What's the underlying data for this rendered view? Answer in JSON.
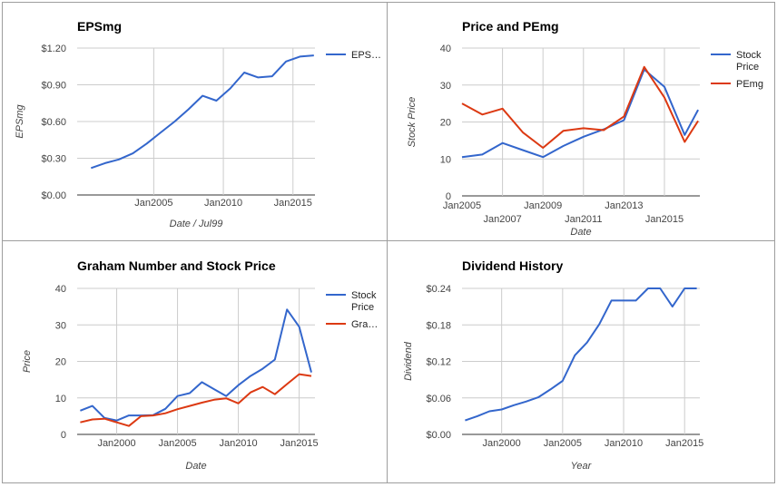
{
  "chart_data": [
    {
      "type": "line",
      "title": "EPSmg",
      "xlabel": "Date / Jul99",
      "ylabel": "EPSmg",
      "x_ticks": [
        "Jan2005",
        "Jan2010",
        "Jan2015"
      ],
      "y_ticks": [
        "$0.00",
        "$0.30",
        "$0.60",
        "$0.90",
        "$1.20"
      ],
      "ylim": [
        0,
        1.2
      ],
      "legend_position": "right",
      "series": [
        {
          "name": "EPS…",
          "color": "#3366cc",
          "x": [
            "2000-07",
            "2001-07",
            "2002-07",
            "2003-07",
            "2004-07",
            "2005-07",
            "2006-07",
            "2007-07",
            "2008-07",
            "2009-07",
            "2010-07",
            "2011-07",
            "2012-07",
            "2013-07",
            "2014-07",
            "2015-07",
            "2016-07"
          ],
          "values": [
            0.22,
            0.26,
            0.29,
            0.34,
            0.42,
            0.51,
            0.6,
            0.7,
            0.81,
            0.77,
            0.87,
            1.0,
            0.96,
            0.97,
            1.09,
            1.13,
            1.14
          ]
        }
      ]
    },
    {
      "type": "line",
      "title": "Price and PEmg",
      "xlabel": "Date",
      "ylabel": "Stock Price",
      "x_ticks_upper": [
        "Jan2005",
        "Jan2009",
        "Jan2013"
      ],
      "x_ticks_lower": [
        "Jan2007",
        "Jan2011",
        "Jan2015"
      ],
      "y_ticks": [
        "0",
        "10",
        "20",
        "30",
        "40"
      ],
      "ylim": [
        0,
        40
      ],
      "legend_position": "right",
      "series": [
        {
          "name": "Stock Price",
          "color": "#3366cc",
          "x": [
            "2005-01",
            "2006-01",
            "2007-01",
            "2008-01",
            "2009-01",
            "2010-01",
            "2011-01",
            "2012-01",
            "2013-01",
            "2014-01",
            "2015-01",
            "2016-01",
            "2016-09"
          ],
          "values": [
            10.5,
            11.2,
            14.3,
            12.4,
            10.5,
            13.5,
            16.0,
            18.0,
            20.5,
            34.2,
            29.5,
            16.5,
            23.3
          ]
        },
        {
          "name": "PEmg",
          "color": "#dc3912",
          "x": [
            "2005-01",
            "2006-01",
            "2007-01",
            "2008-01",
            "2009-01",
            "2010-01",
            "2011-01",
            "2012-01",
            "2013-01",
            "2014-01",
            "2015-01",
            "2016-01",
            "2016-09"
          ],
          "values": [
            25.0,
            22.0,
            23.6,
            17.2,
            13.0,
            17.6,
            18.3,
            17.8,
            21.5,
            34.9,
            26.6,
            14.6,
            20.3
          ]
        }
      ]
    },
    {
      "type": "line",
      "title": "Graham Number and Stock Price",
      "xlabel": "Date",
      "ylabel": "Price",
      "x_ticks": [
        "Jan2000",
        "Jan2005",
        "Jan2010",
        "Jan2015"
      ],
      "y_ticks": [
        "0",
        "10",
        "20",
        "30",
        "40"
      ],
      "ylim": [
        0,
        40
      ],
      "legend_position": "right",
      "series": [
        {
          "name": "Stock Price",
          "color": "#3366cc",
          "x": [
            "1997-01",
            "1998-01",
            "1999-01",
            "2000-01",
            "2001-01",
            "2002-01",
            "2003-01",
            "2004-01",
            "2005-01",
            "2006-01",
            "2007-01",
            "2008-01",
            "2009-01",
            "2010-01",
            "2011-01",
            "2012-01",
            "2013-01",
            "2014-01",
            "2015-01",
            "2016-01"
          ],
          "values": [
            6.5,
            7.8,
            4.5,
            3.8,
            5.2,
            5.2,
            5.3,
            7.0,
            10.5,
            11.3,
            14.3,
            12.4,
            10.5,
            13.5,
            16.0,
            18.0,
            20.5,
            34.2,
            29.5,
            17.0
          ]
        },
        {
          "name": "Gra…",
          "color": "#dc3912",
          "x": [
            "1997-01",
            "1998-01",
            "1999-01",
            "2000-01",
            "2001-01",
            "2002-01",
            "2003-01",
            "2004-01",
            "2005-01",
            "2006-01",
            "2007-01",
            "2008-01",
            "2009-01",
            "2010-01",
            "2011-01",
            "2012-01",
            "2013-01",
            "2014-01",
            "2015-01",
            "2016-01"
          ],
          "values": [
            3.3,
            4.1,
            4.3,
            3.3,
            2.3,
            5.0,
            5.2,
            5.8,
            6.9,
            7.8,
            8.7,
            9.5,
            9.9,
            8.5,
            11.5,
            13.0,
            11.0,
            13.8,
            16.5,
            16.0
          ]
        }
      ]
    },
    {
      "type": "line",
      "title": "Dividend History",
      "xlabel": "Year",
      "ylabel": "Dividend",
      "x_ticks": [
        "Jan2000",
        "Jan2005",
        "Jan2010",
        "Jan2015"
      ],
      "y_ticks": [
        "$0.00",
        "$0.06",
        "$0.12",
        "$0.18",
        "$0.24"
      ],
      "ylim": [
        0,
        0.24
      ],
      "series": [
        {
          "name": "",
          "color": "#3366cc",
          "x": [
            "1997-01",
            "1998-01",
            "1999-01",
            "2000-01",
            "2001-01",
            "2002-01",
            "2003-01",
            "2004-01",
            "2005-01",
            "2006-01",
            "2007-01",
            "2008-01",
            "2009-01",
            "2010-01",
            "2011-01",
            "2012-01",
            "2013-01",
            "2014-01",
            "2015-01",
            "2016-01"
          ],
          "values": [
            0.023,
            0.03,
            0.038,
            0.041,
            0.048,
            0.054,
            0.061,
            0.074,
            0.088,
            0.13,
            0.151,
            0.181,
            0.22,
            0.22,
            0.22,
            0.24,
            0.24,
            0.21,
            0.24,
            0.24
          ]
        }
      ]
    }
  ]
}
